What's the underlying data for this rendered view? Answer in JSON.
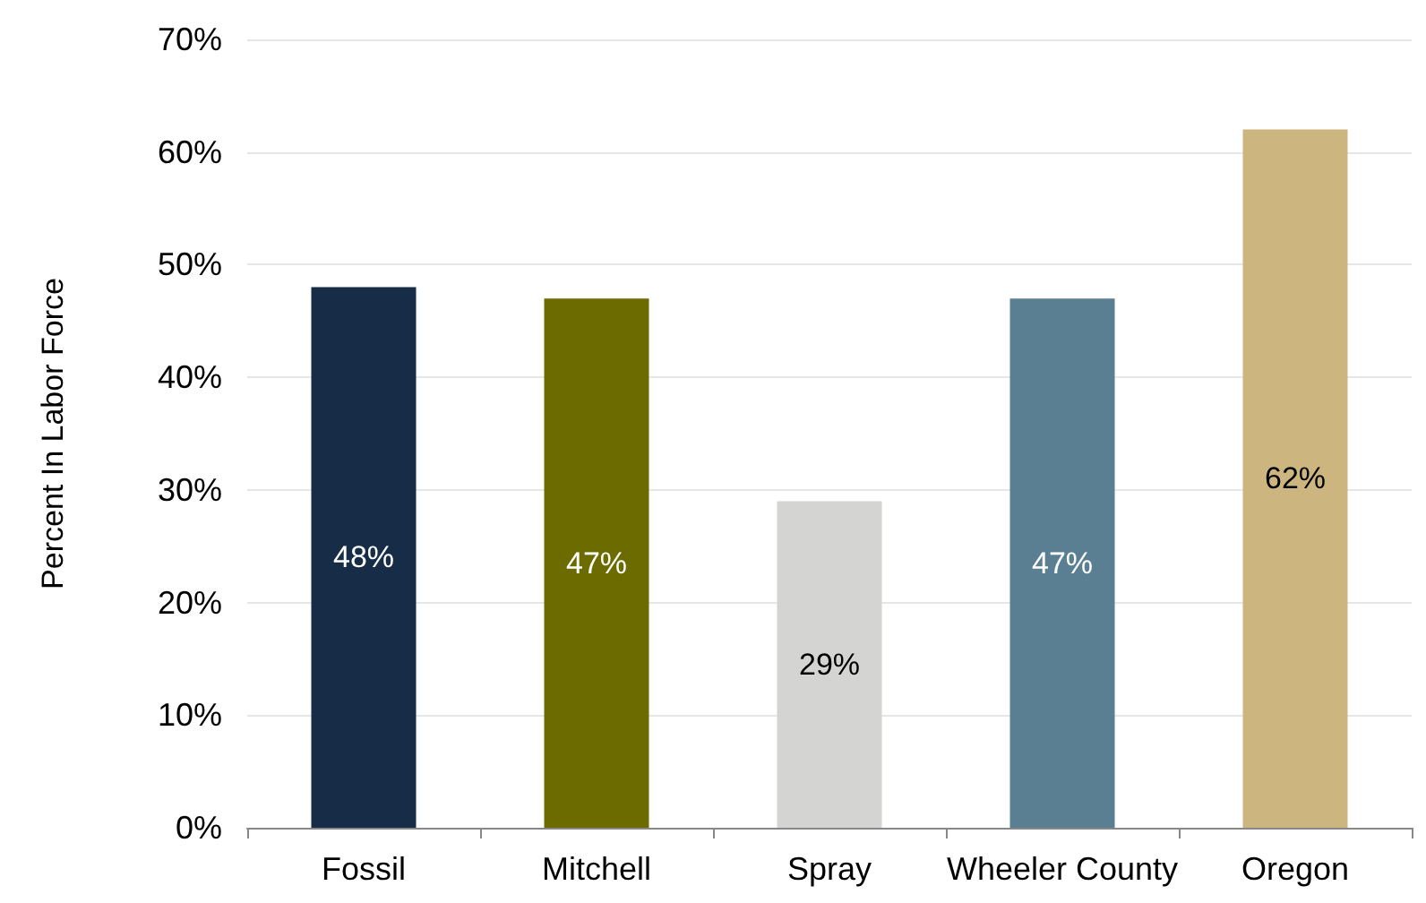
{
  "chart_data": {
    "type": "bar",
    "ylabel": "Percent In Labor Force",
    "categories": [
      "Fossil",
      "Mitchell",
      "Spray",
      "Wheeler County",
      "Oregon"
    ],
    "values": [
      48,
      47,
      29,
      47,
      62
    ],
    "value_labels": [
      "48%",
      "47%",
      "29%",
      "47%",
      "62%"
    ],
    "colors": [
      "#172d47",
      "#6b6b00",
      "#d4d5d3",
      "#5b7f92",
      "#cdb57f"
    ],
    "ylim": [
      0,
      70
    ],
    "yticks": [
      {
        "value": 0,
        "label": "0%"
      },
      {
        "value": 10,
        "label": "10%"
      },
      {
        "value": 20,
        "label": "20%"
      },
      {
        "value": 30,
        "label": "30%"
      },
      {
        "value": 40,
        "label": "40%"
      },
      {
        "value": 50,
        "label": "50%"
      },
      {
        "value": 60,
        "label": "60%"
      },
      {
        "value": 70,
        "label": "70%"
      }
    ],
    "grid": "y"
  }
}
